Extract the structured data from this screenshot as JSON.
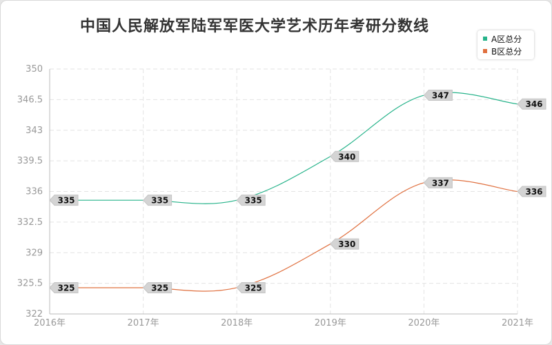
{
  "chart_data": {
    "type": "line",
    "title": "中国人民解放军陆军军医大学艺术历年考研分数线",
    "categories": [
      "2016年",
      "2017年",
      "2018年",
      "2019年",
      "2020年",
      "2021年"
    ],
    "yticks": [
      "350",
      "346.5",
      "343",
      "339.5",
      "336",
      "332.5",
      "329",
      "325.5",
      "322"
    ],
    "ylim": [
      322,
      350
    ],
    "grid": true,
    "legend_position": "top-right",
    "series": [
      {
        "name": "A区总分",
        "color": "#26b38a",
        "values": [
          335,
          335,
          335,
          340,
          347,
          346
        ]
      },
      {
        "name": "B区总分",
        "color": "#e0703f",
        "values": [
          325,
          325,
          325,
          330,
          337,
          336
        ]
      }
    ]
  }
}
